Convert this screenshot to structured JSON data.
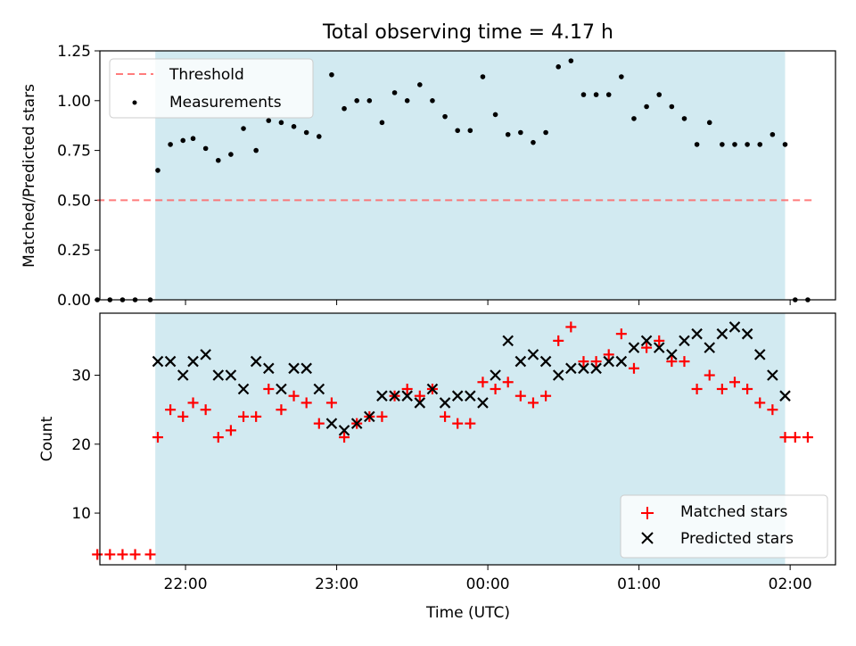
{
  "chart_data": [
    {
      "type": "scatter",
      "title": "Total observing time = 4.17 h",
      "ylabel": "Matched/Predicted stars",
      "ylim": [
        0,
        1.25
      ],
      "y_ticks": [
        0.0,
        0.25,
        0.5,
        0.75,
        1.0,
        1.25
      ],
      "y_tick_labels": [
        "0.00",
        "0.25",
        "0.50",
        "0.75",
        "1.00",
        "1.25"
      ],
      "x_ticks": [
        "22:00",
        "23:00",
        "00:00",
        "01:00",
        "02:00"
      ],
      "observing_window": {
        "start": "21:48",
        "end": "01:58",
        "color": "#add8e6"
      },
      "legend_position": "upper left",
      "series": [
        {
          "name": "Threshold",
          "kind": "dashed-line",
          "color": "#ff6666",
          "x": [
            "21:25",
            "02:10"
          ],
          "y": [
            0.5,
            0.5
          ]
        },
        {
          "name": "Measurements",
          "kind": "dots",
          "color": "#000000",
          "x": [
            "21:25",
            "21:30",
            "21:35",
            "21:40",
            "21:46",
            "21:49",
            "21:54",
            "21:59",
            "22:03",
            "22:08",
            "22:13",
            "22:18",
            "22:23",
            "22:28",
            "22:33",
            "22:38",
            "22:43",
            "22:48",
            "22:53",
            "22:58",
            "23:03",
            "23:08",
            "23:13",
            "23:18",
            "23:23",
            "23:28",
            "23:33",
            "23:38",
            "23:43",
            "23:48",
            "23:53",
            "23:58",
            "00:03",
            "00:08",
            "00:13",
            "00:18",
            "00:23",
            "00:28",
            "00:33",
            "00:38",
            "00:43",
            "00:48",
            "00:53",
            "00:58",
            "01:03",
            "01:08",
            "01:13",
            "01:18",
            "01:23",
            "01:28",
            "01:33",
            "01:38",
            "01:43",
            "01:48",
            "01:53",
            "01:58",
            "02:02",
            "02:07"
          ],
          "y": [
            0.0,
            0.0,
            0.0,
            0.0,
            0.0,
            0.65,
            0.78,
            0.8,
            0.81,
            0.76,
            0.7,
            0.73,
            0.86,
            0.75,
            0.9,
            0.89,
            0.87,
            0.84,
            0.82,
            1.13,
            0.96,
            1.0,
            1.0,
            0.89,
            1.04,
            1.0,
            1.08,
            1.0,
            0.92,
            0.85,
            0.85,
            1.12,
            0.93,
            0.83,
            0.84,
            0.79,
            0.84,
            1.17,
            1.2,
            1.03,
            1.03,
            1.03,
            1.12,
            0.91,
            0.97,
            1.03,
            0.97,
            0.91,
            0.78,
            0.89,
            0.78,
            0.78,
            0.78,
            0.78,
            0.83,
            0.78,
            0.0,
            0.0
          ]
        }
      ]
    },
    {
      "type": "scatter",
      "xlabel": "Time (UTC)",
      "ylabel": "Count",
      "ylim": [
        2.5,
        39
      ],
      "y_ticks": [
        10,
        20,
        30
      ],
      "y_tick_labels": [
        "10",
        "20",
        "30"
      ],
      "x_ticks": [
        "22:00",
        "23:00",
        "00:00",
        "01:00",
        "02:00"
      ],
      "observing_window": {
        "start": "21:48",
        "end": "01:58",
        "color": "#add8e6"
      },
      "legend_position": "lower right",
      "series": [
        {
          "name": "Matched stars",
          "kind": "plus",
          "color": "#ff0000",
          "x": [
            "21:25",
            "21:30",
            "21:35",
            "21:40",
            "21:46",
            "21:49",
            "21:54",
            "21:59",
            "22:03",
            "22:08",
            "22:13",
            "22:18",
            "22:23",
            "22:28",
            "22:33",
            "22:38",
            "22:43",
            "22:48",
            "22:53",
            "22:58",
            "23:03",
            "23:08",
            "23:13",
            "23:18",
            "23:23",
            "23:28",
            "23:33",
            "23:38",
            "23:43",
            "23:48",
            "23:53",
            "23:58",
            "00:03",
            "00:08",
            "00:13",
            "00:18",
            "00:23",
            "00:28",
            "00:33",
            "00:38",
            "00:43",
            "00:48",
            "00:53",
            "00:58",
            "01:03",
            "01:08",
            "01:13",
            "01:18",
            "01:23",
            "01:28",
            "01:33",
            "01:38",
            "01:43",
            "01:48",
            "01:53",
            "01:58",
            "02:02",
            "02:07"
          ],
          "y": [
            4,
            4,
            4,
            4,
            4,
            21,
            25,
            24,
            26,
            25,
            21,
            22,
            24,
            24,
            28,
            25,
            27,
            26,
            23,
            26,
            21,
            23,
            24,
            24,
            27,
            28,
            27,
            28,
            24,
            23,
            23,
            29,
            28,
            29,
            27,
            26,
            27,
            35,
            37,
            32,
            32,
            33,
            36,
            31,
            34,
            35,
            32,
            32,
            28,
            30,
            28,
            29,
            28,
            26,
            25,
            21,
            21,
            21
          ]
        },
        {
          "name": "Predicted stars",
          "kind": "x",
          "color": "#000000",
          "x": [
            "21:49",
            "21:54",
            "21:59",
            "22:03",
            "22:08",
            "22:13",
            "22:18",
            "22:23",
            "22:28",
            "22:33",
            "22:38",
            "22:43",
            "22:48",
            "22:53",
            "22:58",
            "23:03",
            "23:08",
            "23:13",
            "23:18",
            "23:23",
            "23:28",
            "23:33",
            "23:38",
            "23:43",
            "23:48",
            "23:53",
            "23:58",
            "00:03",
            "00:08",
            "00:13",
            "00:18",
            "00:23",
            "00:28",
            "00:33",
            "00:38",
            "00:43",
            "00:48",
            "00:53",
            "00:58",
            "01:03",
            "01:08",
            "01:13",
            "01:18",
            "01:23",
            "01:28",
            "01:33",
            "01:38",
            "01:43",
            "01:48",
            "01:53",
            "01:58"
          ],
          "y": [
            32,
            32,
            30,
            32,
            33,
            30,
            30,
            28,
            32,
            31,
            28,
            31,
            31,
            28,
            23,
            22,
            23,
            24,
            27,
            27,
            27,
            26,
            28,
            26,
            27,
            27,
            26,
            30,
            35,
            32,
            33,
            32,
            30,
            31,
            31,
            31,
            32,
            32,
            34,
            35,
            34,
            33,
            35,
            36,
            34,
            36,
            37,
            36,
            33,
            30,
            27
          ]
        }
      ]
    }
  ]
}
